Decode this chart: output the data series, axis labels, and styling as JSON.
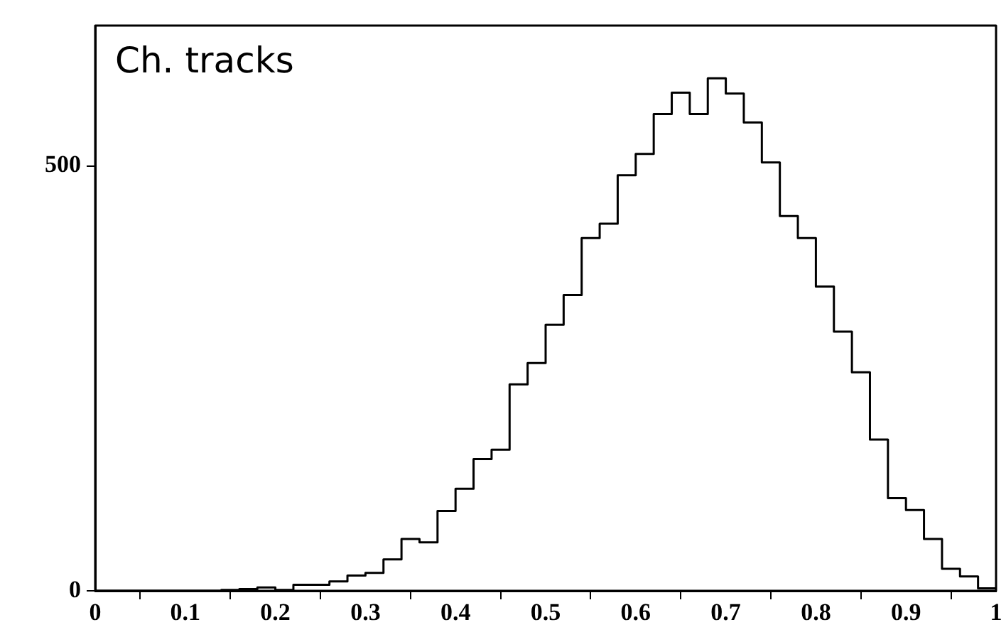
{
  "chart_data": {
    "type": "histogram",
    "title": "Ch. tracks",
    "bins": [
      0,
      0.02,
      0.04,
      0.06,
      0.08,
      0.1,
      0.12,
      0.14,
      0.16,
      0.18,
      0.2,
      0.22,
      0.24,
      0.26,
      0.28,
      0.3,
      0.32,
      0.34,
      0.36,
      0.38,
      0.4,
      0.42,
      0.44,
      0.46,
      0.48,
      0.5,
      0.52,
      0.54,
      0.56,
      0.58,
      0.6,
      0.62,
      0.64,
      0.66,
      0.68,
      0.7,
      0.72,
      0.74,
      0.76,
      0.78,
      0.8,
      0.82,
      0.84,
      0.86,
      0.88,
      0.9,
      0.92,
      0.94,
      0.96,
      0.98,
      1
    ],
    "values": [
      0,
      0,
      0,
      0,
      0,
      0,
      0,
      1,
      2,
      4,
      1,
      7,
      7,
      11,
      18,
      21,
      37,
      61,
      57,
      94,
      120,
      155,
      166,
      243,
      268,
      313,
      348,
      415,
      432,
      489,
      514,
      561,
      586,
      561,
      603,
      585,
      551,
      504,
      441,
      415,
      358,
      305,
      257,
      178,
      109,
      95,
      61,
      26,
      17,
      3
    ],
    "color": "#000000",
    "xlim": [
      0,
      1
    ],
    "xticks": [
      0,
      0.1,
      0.2,
      0.3,
      0.4,
      0.5,
      0.6,
      0.7,
      0.8,
      0.9,
      1
    ],
    "ylim": [
      0,
      665
    ],
    "yticks": [
      0,
      500
    ],
    "grid": false,
    "legend": false
  }
}
